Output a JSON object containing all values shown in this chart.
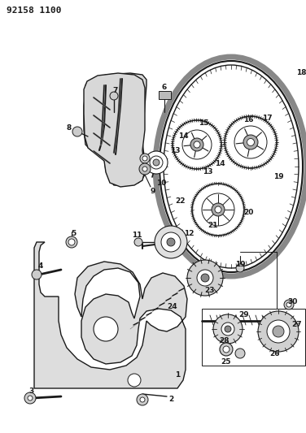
{
  "title": "92158 1100",
  "bg_color": "#ffffff",
  "line_color": "#1a1a1a",
  "title_fontsize": 8,
  "label_fontsize": 6.5,
  "fig_width": 3.76,
  "fig_height": 5.33,
  "dpi": 100
}
